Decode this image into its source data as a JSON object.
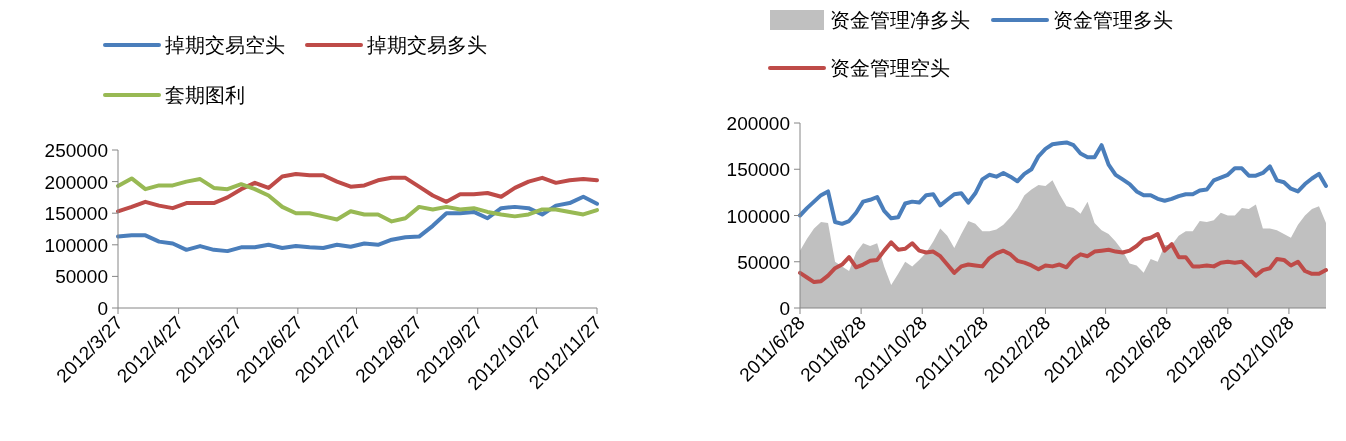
{
  "chart_data": [
    {
      "type": "line",
      "legend": "top",
      "x": [
        "2012-03-27",
        "2012-04-03",
        "2012-04-10",
        "2012-04-17",
        "2012-04-24",
        "2012-05-01",
        "2012-05-08",
        "2012-05-15",
        "2012-05-22",
        "2012-05-29",
        "2012-06-05",
        "2012-06-12",
        "2012-06-19",
        "2012-06-26",
        "2012-07-03",
        "2012-07-10",
        "2012-07-17",
        "2012-07-24",
        "2012-07-31",
        "2012-08-07",
        "2012-08-14",
        "2012-08-21",
        "2012-08-28",
        "2012-09-04",
        "2012-09-11",
        "2012-09-18",
        "2012-09-25",
        "2012-10-02",
        "2012-10-09",
        "2012-10-16",
        "2012-10-23",
        "2012-10-30",
        "2012-11-06",
        "2012-11-13",
        "2012-11-20",
        "2012-11-27"
      ],
      "xlim": [
        "2012-03-27",
        "2012-11-27"
      ],
      "xticks": [
        {
          "value": "2012-03-27",
          "label": "2012/3/27"
        },
        {
          "value": "2012-04-27",
          "label": "2012/4/27"
        },
        {
          "value": "2012-05-27",
          "label": "2012/5/27"
        },
        {
          "value": "2012-06-27",
          "label": "2012/6/27"
        },
        {
          "value": "2012-07-27",
          "label": "2012/7/27"
        },
        {
          "value": "2012-08-27",
          "label": "2012/8/27"
        },
        {
          "value": "2012-09-27",
          "label": "2012/9/27"
        },
        {
          "value": "2012-10-27",
          "label": "2012/10/27"
        },
        {
          "value": "2012-11-27",
          "label": "2012/11/27"
        }
      ],
      "ylim": [
        0,
        250000
      ],
      "yticks": [
        0,
        50000,
        100000,
        150000,
        200000,
        250000
      ],
      "series": [
        {
          "name": "掉期交易空头",
          "color": "#4a7ebb",
          "values": [
            113000,
            115000,
            115000,
            105000,
            102000,
            92000,
            98000,
            92000,
            90000,
            96000,
            96000,
            100000,
            95000,
            98000,
            96000,
            95000,
            100000,
            97000,
            102000,
            100000,
            108000,
            112000,
            113000,
            130000,
            150000,
            150000,
            152000,
            142000,
            158000,
            160000,
            158000,
            148000,
            162000,
            166000,
            176000,
            165000
          ]
        },
        {
          "name": "掉期交易多头",
          "color": "#be4b48",
          "values": [
            153000,
            160000,
            168000,
            162000,
            158000,
            166000,
            166000,
            166000,
            175000,
            188000,
            198000,
            190000,
            208000,
            212000,
            210000,
            210000,
            200000,
            192000,
            194000,
            202000,
            206000,
            206000,
            192000,
            178000,
            168000,
            180000,
            180000,
            182000,
            176000,
            190000,
            200000,
            206000,
            198000,
            202000,
            204000,
            202000
          ]
        },
        {
          "name": "套期图利",
          "color": "#98b954",
          "values": [
            193000,
            205000,
            188000,
            194000,
            194000,
            200000,
            204000,
            190000,
            188000,
            196000,
            188000,
            178000,
            160000,
            150000,
            150000,
            145000,
            140000,
            153000,
            148000,
            148000,
            137000,
            142000,
            160000,
            156000,
            160000,
            156000,
            158000,
            152000,
            148000,
            145000,
            148000,
            156000,
            156000,
            152000,
            148000,
            155000
          ]
        }
      ]
    },
    {
      "type": "line",
      "legend": "top",
      "x": [
        "2011-06-28",
        "2011-07-05",
        "2011-07-12",
        "2011-07-19",
        "2011-07-26",
        "2011-08-02",
        "2011-08-09",
        "2011-08-16",
        "2011-08-23",
        "2011-08-30",
        "2011-09-06",
        "2011-09-13",
        "2011-09-20",
        "2011-09-27",
        "2011-10-04",
        "2011-10-11",
        "2011-10-18",
        "2011-10-25",
        "2011-11-01",
        "2011-11-08",
        "2011-11-15",
        "2011-11-22",
        "2011-11-29",
        "2011-12-06",
        "2011-12-13",
        "2011-12-20",
        "2011-12-27",
        "2012-01-03",
        "2012-01-10",
        "2012-01-17",
        "2012-01-24",
        "2012-01-31",
        "2012-02-07",
        "2012-02-14",
        "2012-02-21",
        "2012-02-28",
        "2012-03-06",
        "2012-03-13",
        "2012-03-20",
        "2012-03-27",
        "2012-04-03",
        "2012-04-10",
        "2012-04-17",
        "2012-04-24",
        "2012-05-01",
        "2012-05-08",
        "2012-05-15",
        "2012-05-22",
        "2012-05-29",
        "2012-06-05",
        "2012-06-12",
        "2012-06-19",
        "2012-06-26",
        "2012-07-03",
        "2012-07-10",
        "2012-07-17",
        "2012-07-24",
        "2012-07-31",
        "2012-08-07",
        "2012-08-14",
        "2012-08-21",
        "2012-08-28",
        "2012-09-04",
        "2012-09-11",
        "2012-09-18",
        "2012-09-25",
        "2012-10-02",
        "2012-10-09",
        "2012-10-16",
        "2012-10-23",
        "2012-10-30",
        "2012-11-06",
        "2012-11-13",
        "2012-11-20",
        "2012-11-27",
        "2012-12-04"
      ],
      "xlim": [
        "2011-06-28",
        "2012-12-04"
      ],
      "xticks": [
        {
          "value": "2011-06-28",
          "label": "2011/6/28"
        },
        {
          "value": "2011-08-28",
          "label": "2011/8/28"
        },
        {
          "value": "2011-10-28",
          "label": "2011/10/28"
        },
        {
          "value": "2011-12-28",
          "label": "2011/12/28"
        },
        {
          "value": "2012-02-28",
          "label": "2012/2/28"
        },
        {
          "value": "2012-04-28",
          "label": "2012/4/28"
        },
        {
          "value": "2012-06-28",
          "label": "2012/6/28"
        },
        {
          "value": "2012-08-28",
          "label": "2012/8/28"
        },
        {
          "value": "2012-10-28",
          "label": "2012/10/28"
        }
      ],
      "ylim": [
        0,
        200000
      ],
      "yticks": [
        0,
        50000,
        100000,
        150000,
        200000
      ],
      "series": [
        {
          "name": "资金管理净多头",
          "type": "area",
          "color": "#c0c0c0",
          "values": [
            62000,
            75000,
            86000,
            93000,
            92000,
            50000,
            45000,
            40000,
            60000,
            70000,
            67000,
            70000,
            45000,
            25000,
            37000,
            50000,
            45000,
            52000,
            60000,
            72000,
            86000,
            78000,
            65000,
            80000,
            94000,
            91000,
            83000,
            83000,
            85000,
            90000,
            98000,
            108000,
            122000,
            128000,
            133000,
            132000,
            138000,
            123000,
            110000,
            108000,
            102000,
            115000,
            92000,
            84000,
            80000,
            72000,
            62000,
            48000,
            46000,
            38000,
            53000,
            50000,
            68000,
            68000,
            78000,
            83000,
            83000,
            94000,
            93000,
            95000,
            103000,
            100000,
            100000,
            108000,
            107000,
            112000,
            86000,
            86000,
            84000,
            80000,
            76000,
            90000,
            100000,
            107000,
            110000,
            92000
          ]
        },
        {
          "name": "资金管理多头",
          "color": "#4a7ebb",
          "values": [
            100000,
            108000,
            115000,
            122000,
            126000,
            93000,
            91000,
            94000,
            103000,
            115000,
            117000,
            120000,
            105000,
            97000,
            98000,
            113000,
            115000,
            114000,
            122000,
            123000,
            111000,
            117000,
            123000,
            124000,
            114000,
            124000,
            139000,
            144000,
            142000,
            146000,
            142000,
            137000,
            145000,
            150000,
            164000,
            172000,
            177000,
            178000,
            179000,
            176000,
            167000,
            163000,
            163000,
            176000,
            155000,
            144000,
            139000,
            134000,
            126000,
            122000,
            122000,
            118000,
            116000,
            118000,
            121000,
            123000,
            123000,
            127000,
            128000,
            138000,
            141000,
            144000,
            151000,
            151000,
            143000,
            143000,
            146000,
            153000,
            138000,
            136000,
            129000,
            126000,
            134000,
            140000,
            145000,
            132000
          ]
        },
        {
          "name": "资金管理空头",
          "color": "#be4b48",
          "values": [
            38000,
            33000,
            28000,
            29000,
            35000,
            43000,
            47000,
            55000,
            44000,
            47000,
            51000,
            52000,
            62000,
            71000,
            63000,
            64000,
            70000,
            62000,
            60000,
            61000,
            56000,
            47000,
            38000,
            45000,
            47000,
            46000,
            45000,
            54000,
            59000,
            62000,
            58000,
            51000,
            49000,
            46000,
            42000,
            46000,
            45000,
            47000,
            44000,
            53000,
            58000,
            56000,
            61000,
            62000,
            63000,
            61000,
            60000,
            62000,
            67000,
            74000,
            76000,
            80000,
            62000,
            69000,
            55000,
            55000,
            45000,
            45000,
            46000,
            45000,
            49000,
            50000,
            49000,
            50000,
            43000,
            35000,
            41000,
            43000,
            53000,
            52000,
            46000,
            50000,
            40000,
            37000,
            37000,
            41000
          ]
        }
      ]
    }
  ]
}
